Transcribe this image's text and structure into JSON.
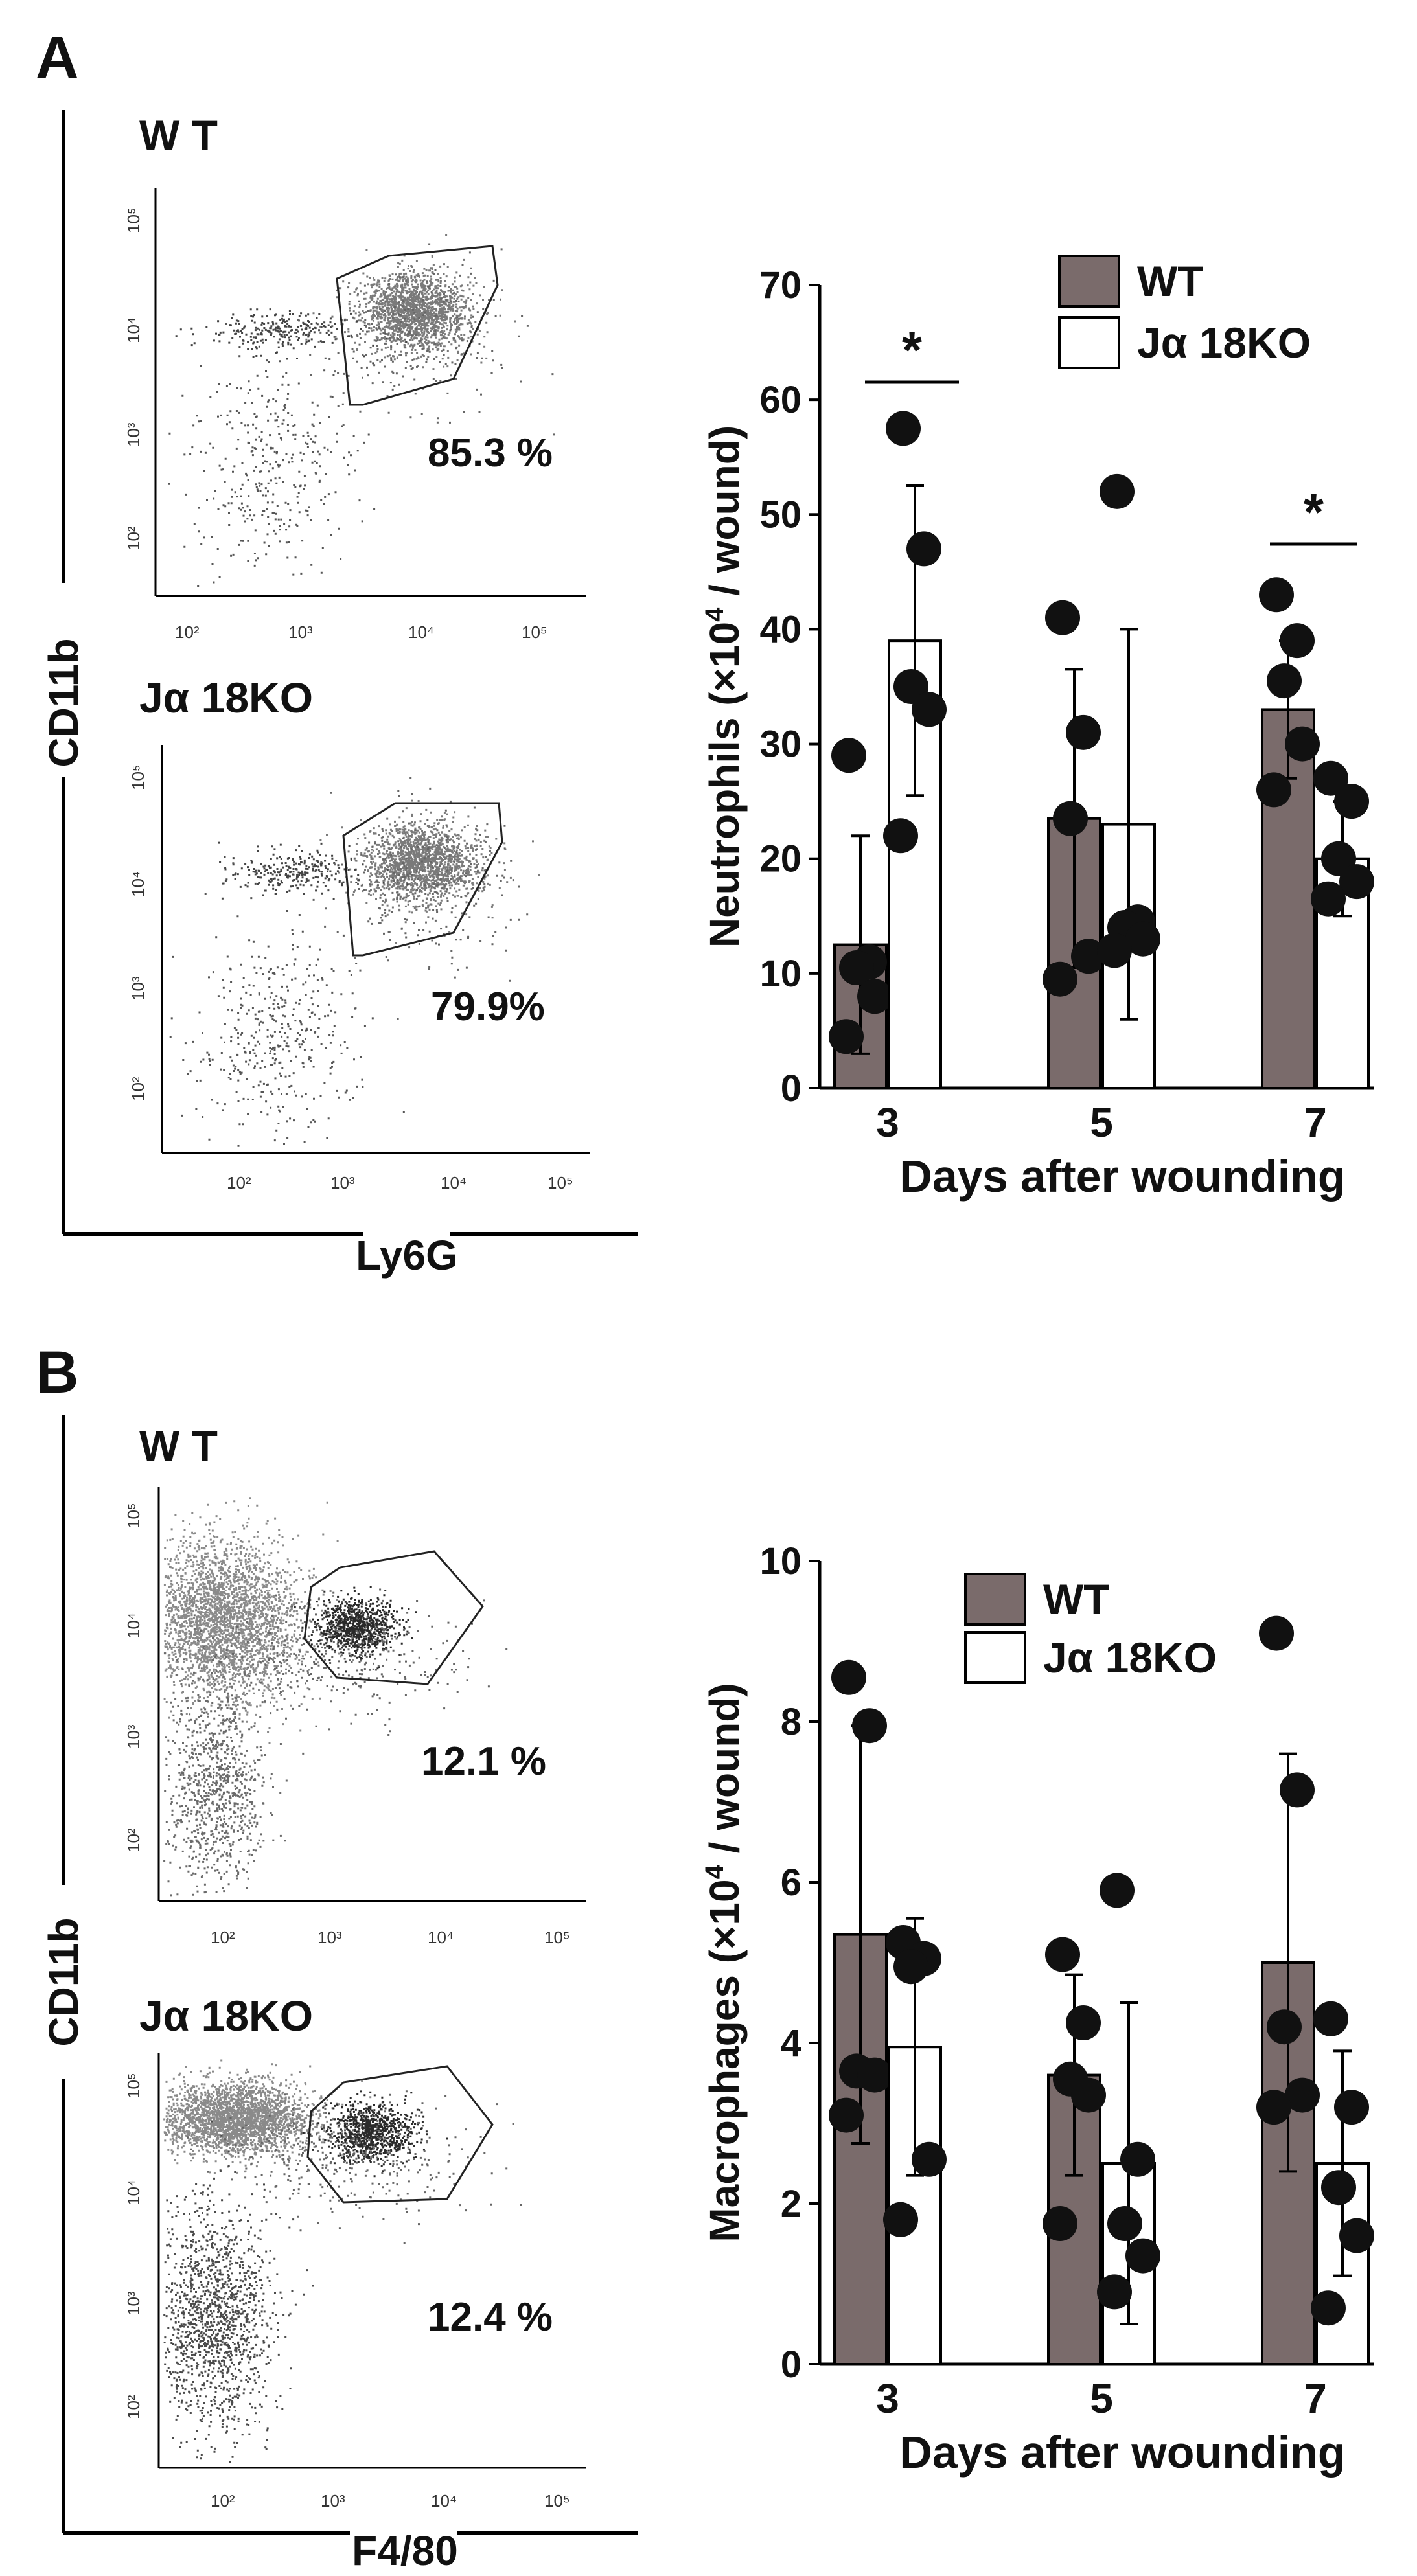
{
  "panelA": {
    "letter": "A",
    "flow": {
      "y_label": "CD11b",
      "x_label": "Ly6G",
      "plots": [
        {
          "title": "W T",
          "percent": "85.3 %"
        },
        {
          "title": "Jα 18KO",
          "percent": "79.9%"
        }
      ],
      "x_ticks": [
        "10²",
        "10³",
        "10⁴",
        "10⁵"
      ],
      "y_ticks": [
        "10²",
        "10³",
        "10⁴",
        "10⁵"
      ]
    }
  },
  "panelB": {
    "letter": "B",
    "flow": {
      "y_label": "CD11b",
      "x_label": "F4/80",
      "plots": [
        {
          "title": "W T",
          "percent": "12.1 %"
        },
        {
          "title": "Jα 18KO",
          "percent": "12.4 %"
        }
      ],
      "x_ticks": [
        "10²",
        "10³",
        "10⁴",
        "10⁵"
      ],
      "y_ticks": [
        "10²",
        "10³",
        "10⁴",
        "10⁵"
      ]
    }
  },
  "colors": {
    "wt_bar": "#7a6b6b",
    "ko_bar": "#ffffff",
    "dot": "#111111",
    "flow_dots": "#555555"
  },
  "chart_data": [
    {
      "type": "bar",
      "panel": "A",
      "title": "",
      "xlabel": "Days after wounding",
      "ylabel_prefix": "Neutrophils (×10",
      "ylabel_sup": "4",
      "ylabel_suffix": " / wound)",
      "categories": [
        "3",
        "5",
        "7"
      ],
      "ylim": [
        0,
        70
      ],
      "yticks": [
        0,
        10,
        20,
        30,
        40,
        50,
        60,
        70
      ],
      "legend": "top-right",
      "series": [
        {
          "name": "WT",
          "values": [
            12.5,
            23.5,
            33
          ],
          "errors": [
            9.5,
            13,
            6
          ],
          "points": [
            [
              29,
              11,
              10.5,
              8,
              4.5
            ],
            [
              41,
              31,
              23.5,
              11.5,
              9.5
            ],
            [
              43,
              39,
              35.5,
              30,
              26
            ]
          ]
        },
        {
          "name": "Jα 18KO",
          "values": [
            39,
            23,
            20
          ],
          "errors": [
            13.5,
            17,
            5
          ],
          "points": [
            [
              57.5,
              47,
              35,
              33,
              22
            ],
            [
              52,
              14.5,
              14,
              13,
              12
            ],
            [
              27,
              25,
              20,
              18,
              16.5
            ]
          ]
        }
      ],
      "significance": [
        {
          "label": "*",
          "group": "3"
        },
        {
          "label": "*",
          "group": "7"
        }
      ]
    },
    {
      "type": "bar",
      "panel": "B",
      "title": "",
      "xlabel": "Days after wounding",
      "ylabel_prefix": "Macrophages (×10",
      "ylabel_sup": "4",
      "ylabel_suffix": " / wound)",
      "categories": [
        "3",
        "5",
        "7"
      ],
      "ylim": [
        0,
        10
      ],
      "yticks": [
        0,
        2,
        4,
        6,
        8,
        10
      ],
      "legend": "top-right",
      "series": [
        {
          "name": "WT",
          "values": [
            5.35,
            3.6,
            5.0
          ],
          "errors": [
            2.6,
            1.25,
            2.6
          ],
          "points": [
            [
              8.55,
              7.95,
              3.65,
              3.6,
              3.1
            ],
            [
              5.1,
              4.25,
              3.55,
              3.35,
              1.75
            ],
            [
              9.1,
              7.15,
              4.2,
              3.35,
              3.2
            ]
          ]
        },
        {
          "name": "Jα 18KO",
          "values": [
            3.95,
            2.5,
            2.5
          ],
          "errors": [
            1.6,
            2.0,
            1.4
          ],
          "points": [
            [
              5.25,
              5.05,
              4.95,
              2.55,
              1.8
            ],
            [
              5.9,
              2.55,
              1.75,
              1.35,
              0.9
            ],
            [
              4.3,
              3.2,
              2.2,
              1.6,
              0.7
            ]
          ]
        }
      ]
    }
  ]
}
